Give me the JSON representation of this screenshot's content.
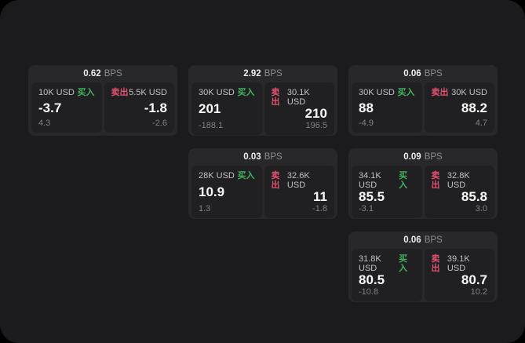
{
  "labels": {
    "bps": "BPS",
    "buy": "买入",
    "sell": "卖出"
  },
  "colors": {
    "page_background": "#1b1b1d",
    "card_background": "#28282a",
    "panel_background": "#202022",
    "buy_green": "#42b35d",
    "sell_red": "#e0516e"
  },
  "cards": [
    {
      "row": 1,
      "col": 1,
      "bps": "0.62",
      "buy": {
        "amount": "10K USD",
        "value": "-3.7",
        "sub": "4.3"
      },
      "sell": {
        "amount": "5.5K USD",
        "value": "-1.8",
        "sub": "-2.6"
      }
    },
    {
      "row": 1,
      "col": 2,
      "bps": "2.92",
      "buy": {
        "amount": "30K USD",
        "value": "201",
        "sub": "-188.1"
      },
      "sell": {
        "amount": "30.1K USD",
        "value": "210",
        "sub": "196.5"
      }
    },
    {
      "row": 1,
      "col": 3,
      "bps": "0.06",
      "buy": {
        "amount": "30K USD",
        "value": "88",
        "sub": "-4.9"
      },
      "sell": {
        "amount": "30K USD",
        "value": "88.2",
        "sub": "4.7"
      }
    },
    {
      "row": 2,
      "col": 2,
      "bps": "0.03",
      "buy": {
        "amount": "28K USD",
        "value": "10.9",
        "sub": "1.3"
      },
      "sell": {
        "amount": "32.6K USD",
        "value": "11",
        "sub": "-1.8"
      }
    },
    {
      "row": 2,
      "col": 3,
      "bps": "0.09",
      "buy": {
        "amount": "34.1K USD",
        "value": "85.5",
        "sub": "-3.1"
      },
      "sell": {
        "amount": "32.8K USD",
        "value": "85.8",
        "sub": "3.0"
      }
    },
    {
      "row": 3,
      "col": 3,
      "bps": "0.06",
      "buy": {
        "amount": "31.8K USD",
        "value": "80.5",
        "sub": "-10.8"
      },
      "sell": {
        "amount": "39.1K USD",
        "value": "80.7",
        "sub": "10.2"
      }
    }
  ]
}
